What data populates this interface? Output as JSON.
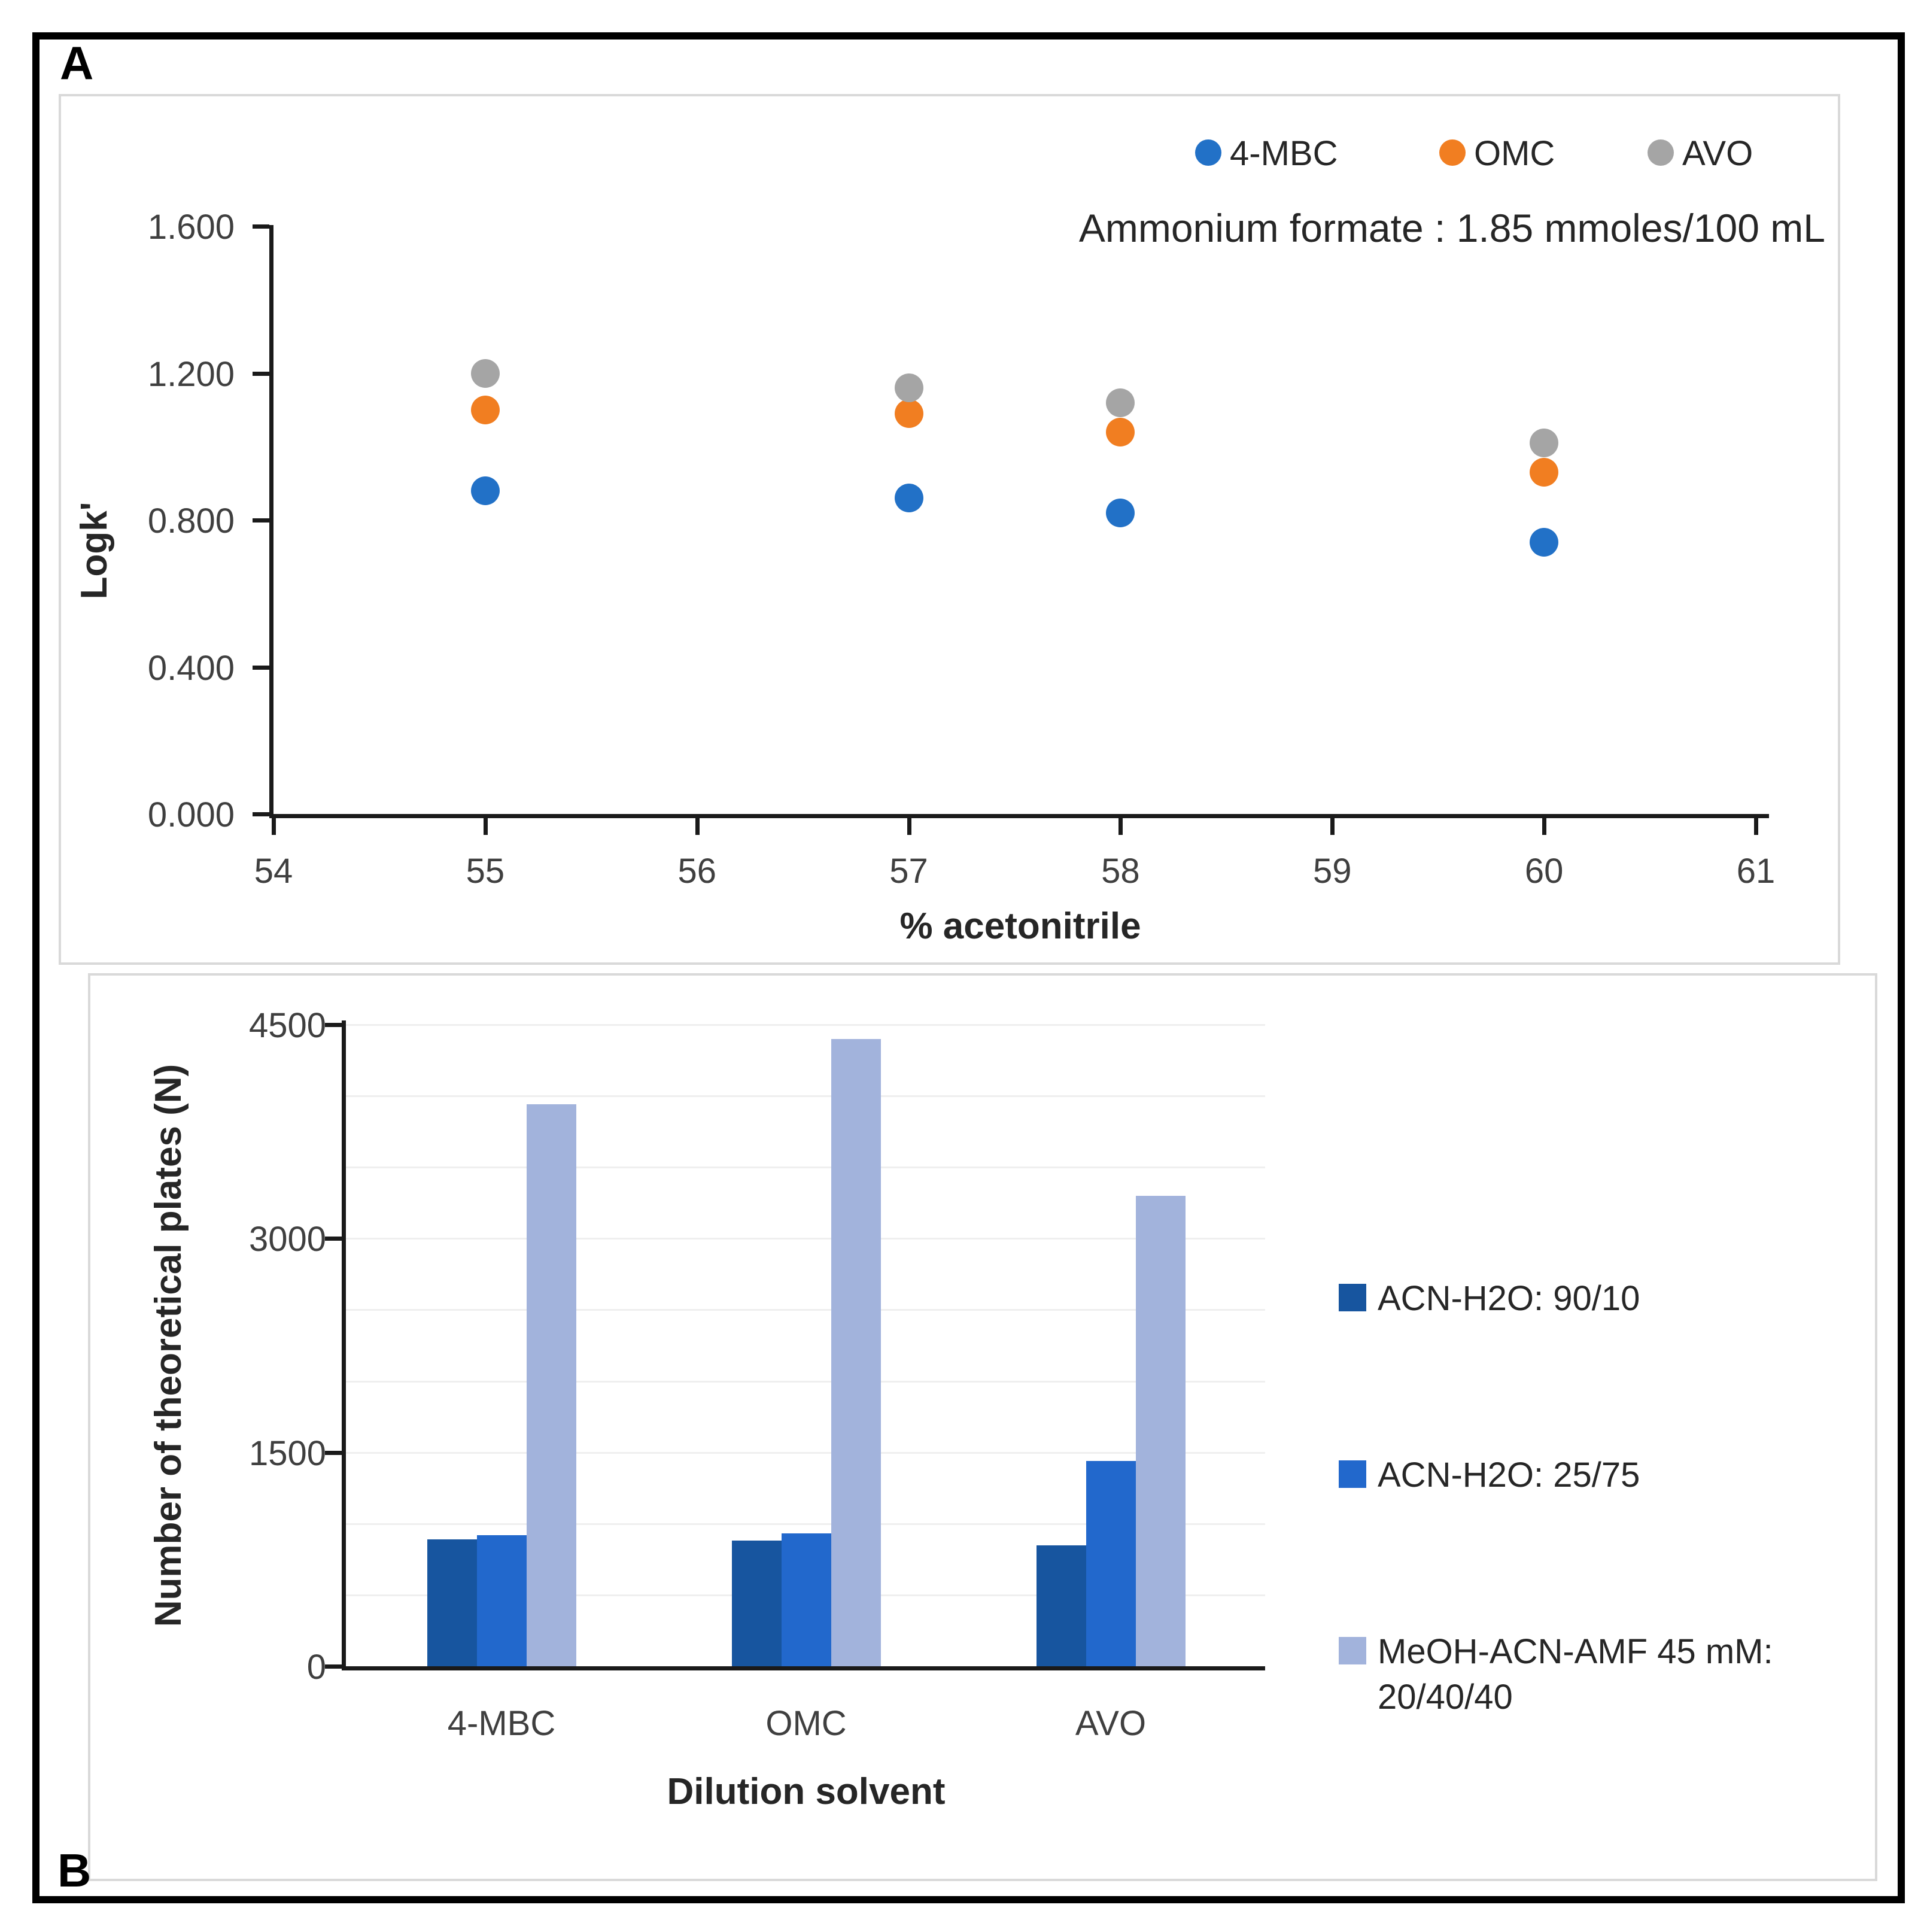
{
  "figure": {
    "panel_a_label": "A",
    "panel_b_label": "B"
  },
  "chart_data": [
    {
      "id": "panel-a",
      "type": "scatter",
      "annotation": "Ammonium formate : 1.85 mmoles/100 mL",
      "xlabel": "% acetonitrile",
      "ylabel": "Logk'",
      "xlim": [
        54,
        61
      ],
      "ylim": [
        0,
        1.6
      ],
      "grid": false,
      "legend_position": "top-right",
      "x_ticks": [
        54,
        55,
        56,
        57,
        58,
        59,
        60,
        61
      ],
      "y_ticks": [
        {
          "v": 1.6,
          "label": "1.600"
        },
        {
          "v": 1.2,
          "label": "1.200"
        },
        {
          "v": 0.8,
          "label": "0.800"
        },
        {
          "v": 0.4,
          "label": "0.400"
        },
        {
          "v": 0.0,
          "label": "0.000"
        }
      ],
      "series": [
        {
          "name": "4-MBC",
          "color": "#2271c7",
          "points": [
            [
              55,
              0.88
            ],
            [
              57,
              0.86
            ],
            [
              58,
              0.82
            ],
            [
              60,
              0.74
            ]
          ]
        },
        {
          "name": "OMC",
          "color": "#f17e21",
          "points": [
            [
              55,
              1.1
            ],
            [
              57,
              1.09
            ],
            [
              58,
              1.04
            ],
            [
              60,
              0.93
            ]
          ]
        },
        {
          "name": "AVO",
          "color": "#a5a5a5",
          "points": [
            [
              55,
              1.2
            ],
            [
              57,
              1.16
            ],
            [
              58,
              1.12
            ],
            [
              60,
              1.01
            ]
          ]
        }
      ]
    },
    {
      "id": "panel-b",
      "type": "bar",
      "xlabel": "Dilution solvent",
      "ylabel": "Number of theoretical plates (N)",
      "categories": [
        "4-MBC",
        "OMC",
        "AVO"
      ],
      "ylim": [
        0,
        4500
      ],
      "gridline_step": 500,
      "grid": true,
      "legend_position": "right",
      "y_ticks": [
        {
          "v": 0,
          "label": "0"
        },
        {
          "v": 1500,
          "label": "1500"
        },
        {
          "v": 3000,
          "label": "3000"
        },
        {
          "v": 4500,
          "label": "4500"
        }
      ],
      "series": [
        {
          "name": "ACN-H2O: 90/10",
          "color": "#17559f",
          "values": [
            890,
            880,
            850
          ]
        },
        {
          "name": "ACN-H2O: 25/75",
          "color": "#2268cc",
          "values": [
            920,
            930,
            1440
          ]
        },
        {
          "name": "MeOH-ACN-AMF 45 mM: 20/40/40",
          "legend_lines": [
            "MeOH-ACN-AMF 45 mM:",
            "20/40/40"
          ],
          "color": "#a2b3dc",
          "values": [
            3940,
            4400,
            3300
          ]
        }
      ]
    }
  ]
}
